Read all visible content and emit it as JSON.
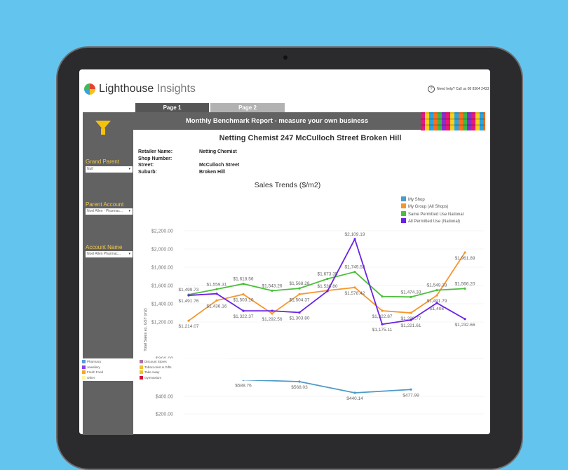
{
  "app": {
    "logo_main": "Lighthouse",
    "logo_sub": "Insights",
    "help_text": "Need help? Call us 08 8364 2433"
  },
  "tabs": [
    {
      "label": "Page 1",
      "active": true
    },
    {
      "label": "Page 2",
      "active": false
    }
  ],
  "header": {
    "title": "Monthly Benchmark Report - measure your own business"
  },
  "filters": {
    "grand_parent": {
      "label": "Grand Parent",
      "value": "Null"
    },
    "parent_account": {
      "label": "Parent Account",
      "value": "Noel Allen - Pharmac..."
    },
    "account_name": {
      "label": "Account Name",
      "value": "Noel Allen Pharmac..."
    }
  },
  "store": {
    "title": "Netting Chemist 247 McCulloch Street Broken Hill",
    "fields": [
      {
        "label": "Retailer Name:",
        "value": "Netting Chemist"
      },
      {
        "label": "Shop Number:",
        "value": ""
      },
      {
        "label": "Street:",
        "value": "McCulloch Street"
      },
      {
        "label": "Suburb:",
        "value": "Broken Hill"
      }
    ]
  },
  "category_legend": [
    {
      "label": "Pharmacy",
      "color": "#5b9bd5"
    },
    {
      "label": "Jewellery",
      "color": "#8a3ff0"
    },
    {
      "label": "Fresh Food",
      "color": "#f5a623"
    },
    {
      "label": "Other",
      "color": "#fff59d"
    },
    {
      "label": "Discount Stores",
      "color": "#b070a8"
    },
    {
      "label": "Tobacconist & Gifts",
      "color": "#f0c030"
    },
    {
      "label": "Take Away",
      "color": "#f0c030"
    },
    {
      "label": "Gymnasium",
      "color": "#d0103a"
    }
  ],
  "chart_data": {
    "type": "line",
    "title": "Sales Trends ($/m2)",
    "ylabel": "Total Sales ex. GST (m2)",
    "ylim": [
      0,
      2200
    ],
    "yticks": [
      "$2,200.00",
      "$2,000.00",
      "$1,800.00",
      "$1,600.00",
      "$1,400.00",
      "$1,200.00",
      "$800.00",
      "$400.00",
      "$200.00"
    ],
    "ytick_values": [
      2200,
      2000,
      1800,
      1600,
      1400,
      1200,
      800,
      400,
      200
    ],
    "grid": true,
    "legend_position": "top-right",
    "series": [
      {
        "name": "My Shop",
        "color": "#4e9ac8",
        "values": [
          null,
          null,
          588.76,
          null,
          568.03,
          null,
          440.14,
          null,
          477.99,
          null,
          null
        ],
        "labels": [
          null,
          null,
          "$588.76",
          null,
          "$568.03",
          null,
          "$440.14",
          null,
          "$477.99",
          null,
          null
        ]
      },
      {
        "name": "My Group (All Shops)",
        "color": "#f7952b",
        "values": [
          1214.07,
          1436.16,
          1503.1,
          1292.56,
          1504.37,
          1545,
          1578.42,
          1322.87,
          1299.77,
          1491.79,
          1961.89
        ],
        "labels": [
          "$1,214.07",
          "$1,436.16",
          "$1,503.10",
          "$1,292.56",
          "$1,504.37",
          null,
          "$1,578.42",
          "$1,322.87",
          "$1,299.77",
          "$1,491.79",
          "$1,961.89"
        ]
      },
      {
        "name": "Same Permitted Use National",
        "color": "#4cbf3a",
        "values": [
          1499.73,
          1559.31,
          1618.56,
          1543.26,
          1568.28,
          1673.35,
          1749.52,
          1480,
          1474.33,
          1549.33,
          1566.2
        ],
        "labels": [
          "$1,499.73",
          "$1,559.31",
          "$1,618.56",
          "$1,543.26",
          "$1,568.28",
          "$1,673.35",
          "$1,749.52",
          null,
          "$1,474.33",
          "$1,549.33",
          "$1,566.20"
        ]
      },
      {
        "name": "All Permitted Use (National)",
        "color": "#6a22e8",
        "values": [
          1491.76,
          1510,
          1322.37,
          1322,
          1303.8,
          1538.8,
          2109.19,
          1175.11,
          1221.61,
          1408,
          1232.66
        ],
        "labels": [
          "$1,491.76",
          null,
          "$1,322.37",
          null,
          "$1,303.80",
          "$1,538.80",
          "$2,109.19",
          "$1,175.11",
          "$1,221.61",
          "$1,408",
          "$1,232.66"
        ]
      }
    ]
  }
}
